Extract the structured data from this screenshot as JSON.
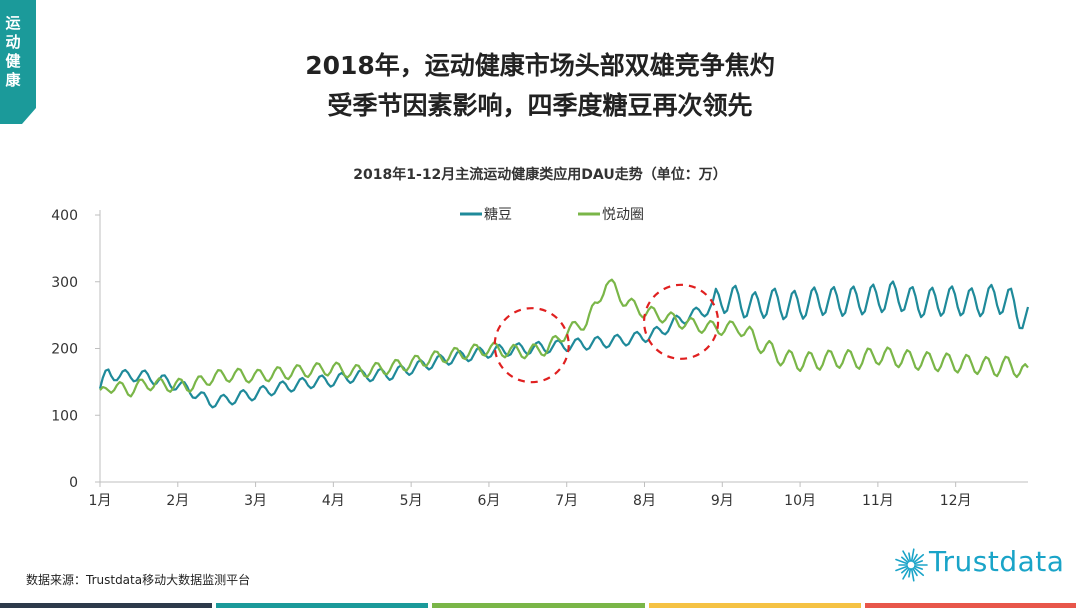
{
  "sidebar_tag": {
    "chars": [
      "运",
      "动",
      "健",
      "康"
    ],
    "color": "#1b9a9a"
  },
  "title_line1": "2018年，运动健康市场头部双雄竞争焦灼",
  "title_line2": "受季节因素影响，四季度糖豆再次领先",
  "source": "数据来源：Trustdata移动大数据监测平台",
  "logo_text": "Trustdata",
  "bottom_bar_colors": [
    "#2d3a4a",
    "#1b9a9a",
    "#7ab648",
    "#f5c244",
    "#e8564a"
  ],
  "chart_data": {
    "type": "line",
    "title": "2018年1-12月主流运动健康类应用DAU走势（单位：万）",
    "categories": [
      "1月",
      "2月",
      "3月",
      "4月",
      "5月",
      "6月",
      "7月",
      "8月",
      "9月",
      "10月",
      "11月",
      "12月"
    ],
    "ylim": [
      0,
      400
    ],
    "yticks": [
      0,
      100,
      200,
      300,
      400
    ],
    "legend_position": "top",
    "grid": false,
    "x_unit": "month (1.0 = start of 1月)",
    "series": [
      {
        "name": "糖豆",
        "color": "#1f8a9a",
        "points": [
          [
            1.0,
            140
          ],
          [
            1.1,
            165
          ],
          [
            1.25,
            158
          ],
          [
            1.4,
            160
          ],
          [
            1.6,
            158
          ],
          [
            1.8,
            152
          ],
          [
            2.0,
            145
          ],
          [
            2.2,
            135
          ],
          [
            2.4,
            120
          ],
          [
            2.6,
            122
          ],
          [
            2.8,
            128
          ],
          [
            3.0,
            132
          ],
          [
            3.25,
            140
          ],
          [
            3.5,
            145
          ],
          [
            3.75,
            150
          ],
          [
            4.0,
            152
          ],
          [
            4.25,
            158
          ],
          [
            4.5,
            160
          ],
          [
            4.75,
            162
          ],
          [
            5.0,
            170
          ],
          [
            5.25,
            178
          ],
          [
            5.5,
            185
          ],
          [
            5.75,
            190
          ],
          [
            6.0,
            195
          ],
          [
            6.25,
            198
          ],
          [
            6.5,
            200
          ],
          [
            6.75,
            202
          ],
          [
            7.0,
            205
          ],
          [
            7.25,
            207
          ],
          [
            7.5,
            210
          ],
          [
            7.75,
            213
          ],
          [
            8.0,
            218
          ],
          [
            8.2,
            225
          ],
          [
            8.4,
            240
          ],
          [
            8.6,
            250
          ],
          [
            8.8,
            258
          ],
          [
            9.0,
            275
          ],
          [
            9.2,
            272
          ],
          [
            9.4,
            262
          ],
          [
            9.6,
            270
          ],
          [
            9.8,
            265
          ],
          [
            10.0,
            265
          ],
          [
            10.25,
            272
          ],
          [
            10.5,
            270
          ],
          [
            10.75,
            272
          ],
          [
            11.0,
            275
          ],
          [
            11.25,
            280
          ],
          [
            11.5,
            268
          ],
          [
            11.75,
            270
          ],
          [
            12.0,
            272
          ],
          [
            12.25,
            268
          ],
          [
            12.5,
            275
          ],
          [
            12.7,
            270
          ],
          [
            12.85,
            248
          ],
          [
            12.92,
            245
          ]
        ]
      },
      {
        "name": "悦动圈",
        "color": "#7ab648",
        "points": [
          [
            1.0,
            128
          ],
          [
            1.1,
            145
          ],
          [
            1.25,
            140
          ],
          [
            1.4,
            138
          ],
          [
            1.6,
            148
          ],
          [
            1.8,
            145
          ],
          [
            2.0,
            145
          ],
          [
            2.2,
            145
          ],
          [
            2.4,
            155
          ],
          [
            2.6,
            160
          ],
          [
            2.8,
            160
          ],
          [
            3.0,
            158
          ],
          [
            3.25,
            162
          ],
          [
            3.5,
            165
          ],
          [
            3.75,
            168
          ],
          [
            4.0,
            170
          ],
          [
            4.25,
            165
          ],
          [
            4.5,
            168
          ],
          [
            4.75,
            172
          ],
          [
            5.0,
            178
          ],
          [
            5.25,
            185
          ],
          [
            5.5,
            190
          ],
          [
            5.75,
            195
          ],
          [
            6.0,
            200
          ],
          [
            6.25,
            196
          ],
          [
            6.5,
            195
          ],
          [
            6.75,
            200
          ],
          [
            7.0,
            225
          ],
          [
            7.25,
            240
          ],
          [
            7.4,
            268
          ],
          [
            7.5,
            300
          ],
          [
            7.6,
            292
          ],
          [
            7.75,
            270
          ],
          [
            8.0,
            255
          ],
          [
            8.2,
            250
          ],
          [
            8.4,
            242
          ],
          [
            8.6,
            236
          ],
          [
            8.8,
            232
          ],
          [
            9.0,
            230
          ],
          [
            9.2,
            232
          ],
          [
            9.4,
            215
          ],
          [
            9.6,
            198
          ],
          [
            9.8,
            185
          ],
          [
            10.0,
            180
          ],
          [
            10.25,
            182
          ],
          [
            10.5,
            185
          ],
          [
            10.75,
            183
          ],
          [
            11.0,
            190
          ],
          [
            11.25,
            186
          ],
          [
            11.5,
            182
          ],
          [
            11.75,
            180
          ],
          [
            12.0,
            178
          ],
          [
            12.25,
            176
          ],
          [
            12.5,
            172
          ],
          [
            12.7,
            175
          ],
          [
            12.85,
            168
          ],
          [
            12.92,
            160
          ]
        ]
      }
    ],
    "annotations": [
      {
        "type": "dashed-circle",
        "color": "#e02020",
        "center": [
          6.55,
          205
        ]
      },
      {
        "type": "dashed-circle",
        "color": "#e02020",
        "center": [
          8.47,
          240
        ]
      }
    ]
  }
}
